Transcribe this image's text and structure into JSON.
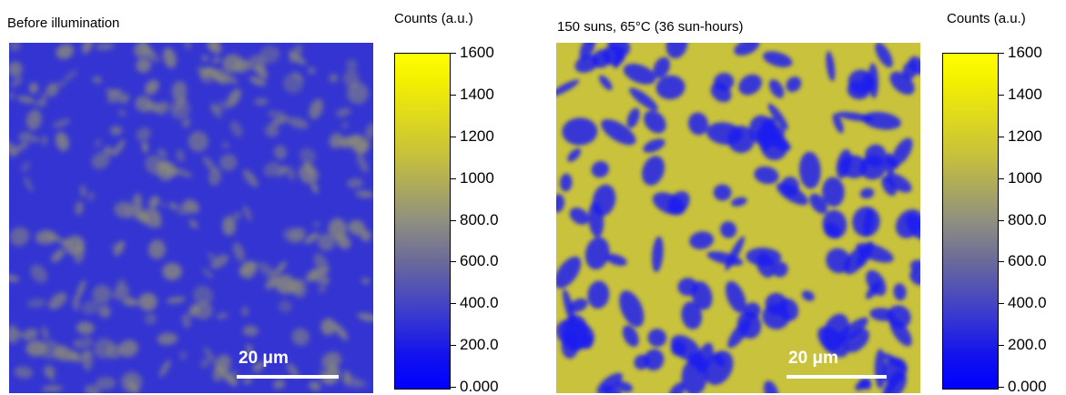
{
  "panels": [
    {
      "title": "Before illumination",
      "colorbar_title": "Counts (a.u.)",
      "ticks": [
        "1600",
        "1400",
        "1200",
        "1000",
        "800.0",
        "600.0",
        "400.0",
        "200.0",
        "0.000"
      ],
      "scalebar": "20 μm",
      "colors": {
        "base": "#3434d2",
        "spot": "#8c8c78"
      },
      "spot_density": 0.22
    },
    {
      "title": "150 suns, 65°C (36 sun-hours)",
      "colorbar_title": "Counts (a.u.)",
      "ticks": [
        "1600",
        "1400",
        "1200",
        "1000",
        "800.0",
        "600.0",
        "400.0",
        "200.0",
        "0.000"
      ],
      "scalebar": "20 μm",
      "colors": {
        "base": "#c8c23c",
        "spot": "#1c1cf0"
      },
      "spot_density": 0.35
    }
  ]
}
